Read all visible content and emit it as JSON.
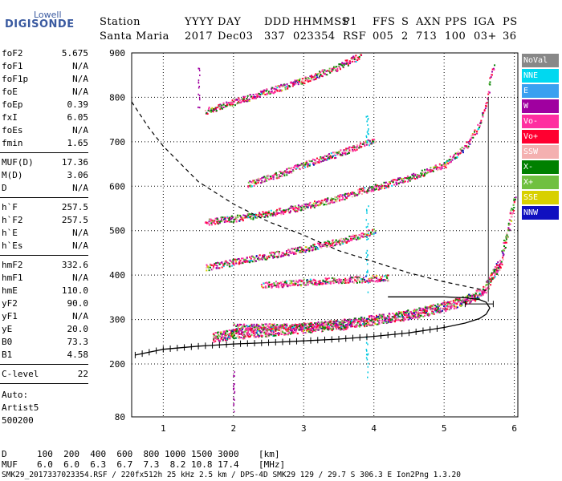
{
  "logo": {
    "line1": "Lowell",
    "line2": "DIGISONDE"
  },
  "header": {
    "labels": [
      "Station",
      "YYYY",
      "DAY",
      "DDD",
      "HHMMSS",
      "P1",
      "FFS",
      "S",
      "AXN",
      "PPS",
      "IGA",
      "PS"
    ],
    "values": [
      "Santa Maria",
      "2017",
      "Dec03",
      "337",
      "023354",
      "RSF",
      "005",
      "2",
      "713",
      "100",
      "03+",
      "36"
    ]
  },
  "params": [
    {
      "name": "foF2",
      "value": "5.675"
    },
    {
      "name": "foF1",
      "value": "N/A"
    },
    {
      "name": "foF1p",
      "value": "N/A"
    },
    {
      "name": "foE",
      "value": "N/A"
    },
    {
      "name": "foEp",
      "value": "0.39"
    },
    {
      "name": "fxI",
      "value": "6.05"
    },
    {
      "name": "foEs",
      "value": "N/A"
    },
    {
      "name": "fmin",
      "value": "1.65"
    },
    {
      "name": "MUF(D)",
      "value": "17.36"
    },
    {
      "name": "M(D)",
      "value": "3.06"
    },
    {
      "name": "D",
      "value": "N/A"
    },
    {
      "name": "h`F",
      "value": "257.5"
    },
    {
      "name": "h`F2",
      "value": "257.5"
    },
    {
      "name": "h`E",
      "value": "N/A"
    },
    {
      "name": "h`Es",
      "value": "N/A"
    },
    {
      "name": "hmF2",
      "value": "332.6"
    },
    {
      "name": "hmF1",
      "value": "N/A"
    },
    {
      "name": "hmE",
      "value": "110.0"
    },
    {
      "name": "yF2",
      "value": "90.0"
    },
    {
      "name": "yF1",
      "value": "N/A"
    },
    {
      "name": "yE",
      "value": "20.0"
    },
    {
      "name": "B0",
      "value": "73.3"
    },
    {
      "name": "B1",
      "value": "4.58"
    },
    {
      "name": "C-level",
      "value": "22"
    }
  ],
  "auto": {
    "line1": "Auto:",
    "line2": "Artist5",
    "line3": "500200"
  },
  "legend": [
    {
      "label": "NoVal",
      "color": "#888888"
    },
    {
      "label": "NNE",
      "color": "#00d8f0"
    },
    {
      "label": "E",
      "color": "#3aa0f0"
    },
    {
      "label": "W",
      "color": "#a000a0"
    },
    {
      "label": "Vo-",
      "color": "#ff2ea0"
    },
    {
      "label": "Vo+",
      "color": "#ff0030"
    },
    {
      "label": "SSW",
      "color": "#f4b0b0"
    },
    {
      "label": "X-",
      "color": "#008000"
    },
    {
      "label": "X+",
      "color": "#70c040"
    },
    {
      "label": "SSE",
      "color": "#d8d000"
    },
    {
      "label": "NNW",
      "color": "#1010c0"
    }
  ],
  "chart_data": {
    "type": "scatter",
    "xlim": [
      0.55,
      6.05
    ],
    "ylim": [
      80,
      900
    ],
    "x_ticks": [
      1,
      2,
      3,
      4,
      5,
      6
    ],
    "y_ticks": [
      80,
      200,
      300,
      400,
      500,
      600,
      700,
      800,
      900
    ],
    "x_label": "",
    "y_label": "",
    "traces": [
      {
        "name": "F2 trace (1st order)",
        "x": [
          1.7,
          2.0,
          2.5,
          3.0,
          3.5,
          4.0,
          4.5,
          5.0,
          5.3,
          5.5,
          5.6,
          5.65,
          5.7,
          5.8,
          5.85,
          5.9,
          5.95,
          6.0
        ],
        "y": [
          262,
          268,
          275,
          282,
          290,
          300,
          312,
          330,
          345,
          360,
          375,
          390,
          405,
          430,
          470,
          500,
          540,
          570
        ]
      },
      {
        "name": "F2 2nd order",
        "x": [
          1.6,
          2.0,
          2.5,
          3.0,
          3.5,
          4.0,
          4.5,
          5.0,
          5.3,
          5.5,
          5.6,
          5.65,
          5.7
        ],
        "y": [
          520,
          528,
          540,
          555,
          575,
          598,
          620,
          650,
          690,
          740,
          790,
          840,
          870
        ]
      },
      {
        "name": "F2 3rd order",
        "x": [
          1.6,
          2.0,
          2.5,
          3.0,
          3.5,
          3.8
        ],
        "y": [
          770,
          790,
          815,
          840,
          870,
          895
        ]
      },
      {
        "name": "oblique 1",
        "x": [
          1.6,
          2.0,
          2.5,
          3.0,
          3.6,
          4.0
        ],
        "y": [
          418,
          430,
          445,
          460,
          480,
          500
        ]
      },
      {
        "name": "oblique 2",
        "x": [
          2.2,
          2.6,
          3.0,
          3.6,
          4.0
        ],
        "y": [
          605,
          625,
          650,
          680,
          705
        ]
      },
      {
        "name": "Es 1",
        "x": [
          2.0,
          2.8,
          3.6
        ],
        "y": [
          285,
          285,
          285
        ]
      },
      {
        "name": "Es 2",
        "x": [
          2.4,
          3.0,
          3.6,
          4.2
        ],
        "y": [
          378,
          385,
          390,
          395
        ]
      }
    ],
    "profile": {
      "x": [
        0.6,
        1.0,
        1.5,
        2.0,
        2.5,
        3.0,
        3.5,
        4.0,
        4.5,
        5.0,
        5.3,
        5.5,
        5.6,
        5.65,
        5.6,
        5.5,
        5.3,
        5.0,
        4.6,
        4.2
      ],
      "y": [
        220,
        233,
        240,
        245,
        248,
        252,
        256,
        262,
        270,
        282,
        292,
        302,
        312,
        326,
        339,
        345,
        349,
        351,
        351,
        351
      ]
    },
    "profile_error": {
      "x": [
        5.5
      ],
      "y": [
        335
      ],
      "xerr": 0.2
    },
    "dashed_curve": {
      "x": [
        0.55,
        0.8,
        1.0,
        1.5,
        2.0,
        2.5,
        3.0,
        3.5,
        4.0,
        4.5,
        5.0,
        5.3,
        5.6
      ],
      "y": [
        790,
        730,
        690,
        610,
        560,
        520,
        490,
        455,
        430,
        405,
        385,
        375,
        365
      ]
    },
    "scatter_cyan": {
      "x": [
        3.9,
        3.9,
        3.9,
        3.9
      ],
      "y": [
        220,
        400,
        510,
        720
      ]
    },
    "scatter_stray": {
      "x": [
        1.5,
        1.5,
        2.0,
        2.0
      ],
      "y": [
        840,
        800,
        160,
        120
      ]
    }
  },
  "footer": {
    "row1_label": "D",
    "row1_values": "100  200  400  600  800 1000 1500 3000",
    "row1_unit": "[km]",
    "row2_label": "MUF",
    "row2_values": "6.0  6.0  6.3  6.7  7.3  8.2 10.8 17.4",
    "row2_unit": "[MHz]",
    "status": "SMK29_2017337023354.RSF / 220fx512h 25 kHz 2.5 km / DPS-4D SMK29 129 / 29.7 S 306.3 E Ion2Png 1.3.20"
  }
}
